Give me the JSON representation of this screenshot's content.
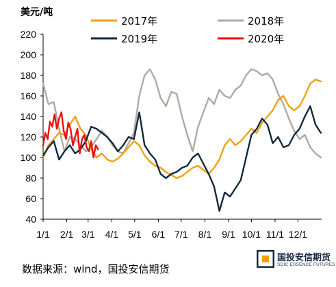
{
  "chart_data": {
    "type": "line",
    "ylabel": "美元/吨",
    "ylim": [
      40,
      220
    ],
    "yticks": [
      40,
      60,
      80,
      100,
      120,
      140,
      160,
      180,
      200,
      220
    ],
    "xticks": [
      "1/1",
      "2/1",
      "3/1",
      "4/1",
      "5/1",
      "6/1",
      "7/1",
      "8/1",
      "9/1",
      "10/1",
      "11/1",
      "12/1"
    ],
    "xlim": [
      1,
      366
    ],
    "grid": false,
    "legend_position": "top",
    "series": [
      {
        "name": "2017年",
        "color": "#F0A010",
        "x": [
          1,
          8,
          15,
          22,
          29,
          36,
          43,
          50,
          57,
          64,
          71,
          78,
          85,
          92,
          99,
          106,
          113,
          120,
          127,
          134,
          141,
          148,
          155,
          162,
          169,
          176,
          183,
          190,
          197,
          204,
          211,
          218,
          225,
          232,
          239,
          246,
          253,
          260,
          267,
          274,
          281,
          288,
          295,
          302,
          309,
          316,
          323,
          330,
          337,
          344,
          351,
          358,
          365
        ],
        "y": [
          100,
          112,
          118,
          124,
          122,
          132,
          140,
          128,
          122,
          108,
          100,
          104,
          98,
          96,
          99,
          104,
          110,
          116,
          112,
          102,
          96,
          92,
          90,
          86,
          83,
          80,
          82,
          86,
          90,
          92,
          88,
          84,
          90,
          98,
          112,
          118,
          112,
          116,
          122,
          128,
          124,
          134,
          140,
          146,
          156,
          160,
          150,
          146,
          150,
          160,
          172,
          176,
          174
        ]
      },
      {
        "name": "2018年",
        "color": "#B0A8A0",
        "x": [
          1,
          8,
          15,
          22,
          29,
          36,
          43,
          50,
          57,
          64,
          71,
          78,
          85,
          92,
          99,
          106,
          113,
          120,
          127,
          134,
          141,
          148,
          155,
          162,
          169,
          176,
          183,
          190,
          197,
          204,
          211,
          218,
          225,
          232,
          239,
          246,
          253,
          260,
          267,
          274,
          281,
          288,
          295,
          302,
          309,
          316,
          323,
          330,
          337,
          344,
          351,
          358,
          365
        ],
        "y": [
          172,
          152,
          154,
          128,
          106,
          120,
          118,
          112,
          106,
          110,
          118,
          126,
          120,
          112,
          106,
          104,
          114,
          124,
          160,
          180,
          186,
          176,
          158,
          150,
          164,
          162,
          140,
          122,
          106,
          130,
          144,
          158,
          152,
          166,
          160,
          158,
          166,
          170,
          180,
          186,
          184,
          180,
          182,
          176,
          162,
          152,
          138,
          126,
          118,
          122,
          110,
          104,
          100
        ]
      },
      {
        "name": "2019年",
        "color": "#12283C",
        "x": [
          1,
          8,
          15,
          22,
          29,
          36,
          43,
          50,
          57,
          64,
          71,
          78,
          85,
          92,
          99,
          106,
          113,
          120,
          127,
          134,
          141,
          148,
          155,
          162,
          169,
          176,
          183,
          190,
          197,
          204,
          211,
          218,
          225,
          232,
          239,
          246,
          253,
          260,
          267,
          274,
          281,
          288,
          295,
          302,
          309,
          316,
          323,
          330,
          337,
          344,
          351,
          358,
          365
        ],
        "y": [
          102,
          110,
          116,
          98,
          106,
          112,
          104,
          108,
          116,
          130,
          128,
          124,
          120,
          114,
          106,
          112,
          120,
          118,
          144,
          112,
          104,
          98,
          84,
          80,
          84,
          86,
          90,
          92,
          100,
          104,
          94,
          84,
          72,
          48,
          66,
          62,
          70,
          78,
          100,
          122,
          128,
          138,
          132,
          114,
          120,
          110,
          112,
          122,
          128,
          140,
          150,
          132,
          124
        ]
      },
      {
        "name": "2020年",
        "color": "#E81010",
        "x": [
          1,
          4,
          7,
          10,
          13,
          16,
          19,
          22,
          25,
          28,
          31,
          34,
          37,
          40,
          43,
          46,
          49,
          52,
          55,
          58,
          61,
          64,
          67,
          70,
          73
        ],
        "y": [
          112,
          124,
          118,
          135,
          130,
          142,
          128,
          138,
          144,
          126,
          118,
          134,
          128,
          112,
          120,
          128,
          104,
          118,
          122,
          110,
          106,
          116,
          100,
          112,
          108
        ]
      }
    ]
  },
  "footer": {
    "source": "数据来源：wind，国投安信期货"
  },
  "logo": {
    "name": "国投安信期货",
    "subtitle": "SDIC ESSENCE FUTURES"
  }
}
